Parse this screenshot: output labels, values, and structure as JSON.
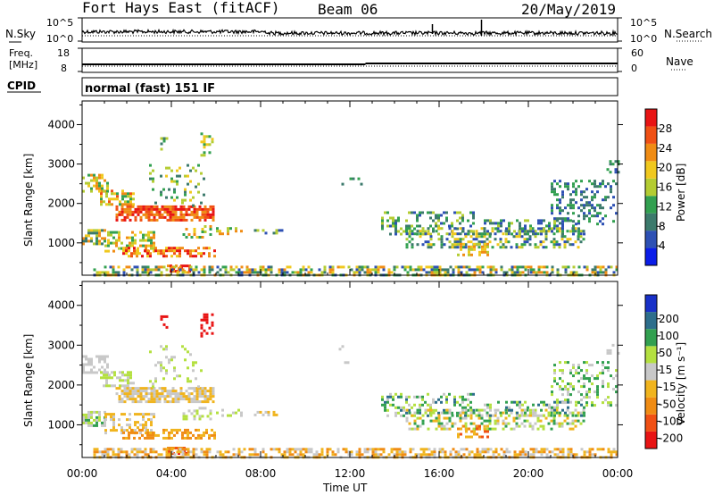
{
  "header": {
    "station": "Fort Hays East (fitACF)",
    "beam": "Beam 06",
    "date": "20/May/2019"
  },
  "top_panels": {
    "nsky_label": "N.Sky",
    "nsearch_label": "N.Search",
    "count_ticks": [
      "10^5",
      "10^0"
    ],
    "freq_label_line1": "Freq.",
    "freq_label_line2": "[MHz]",
    "freq_ticks": [
      "18",
      "8"
    ],
    "nave_label": "Nave",
    "nave_ticks": [
      "60",
      "0"
    ],
    "cpid_label": "CPID",
    "cpid_text": "normal (fast) 151 IF"
  },
  "colors": {
    "power": [
      "#0b1de8",
      "#2d50b4",
      "#3c7a6c",
      "#32a050",
      "#b4cc32",
      "#f0c81e",
      "#f08c14",
      "#f05014",
      "#e81414"
    ],
    "velocity": [
      "#e81414",
      "#f05014",
      "#f08c14",
      "#f0b41e",
      "#c8c8c8",
      "#b4e040",
      "#32a050",
      "#2d6e8c",
      "#1830c8"
    ]
  },
  "chart_data": [
    {
      "type": "heatmap",
      "parameter": "power",
      "title": "",
      "xlabel": "Time UT",
      "ylabel": "Slant Range [km]",
      "x_ticks": [
        "00:00",
        "04:00",
        "08:00",
        "12:00",
        "16:00",
        "20:00",
        "00:00"
      ],
      "xlim_hours": [
        0,
        24
      ],
      "y_ticks": [
        1000,
        2000,
        3000,
        4000
      ],
      "ylim_km": [
        180,
        4600
      ],
      "colorbar": {
        "label": "Power [dB]",
        "ticks": [
          "4",
          "8",
          "12",
          "16",
          "20",
          "24",
          "28"
        ],
        "range": [
          0,
          32
        ]
      }
    },
    {
      "type": "heatmap",
      "parameter": "velocity",
      "title": "",
      "xlabel": "Time UT",
      "ylabel": "Slant Range [km]",
      "x_ticks": [
        "00:00",
        "04:00",
        "08:00",
        "12:00",
        "16:00",
        "20:00",
        "00:00"
      ],
      "xlim_hours": [
        0,
        24
      ],
      "y_ticks": [
        1000,
        2000,
        3000,
        4000
      ],
      "ylim_km": [
        180,
        4600
      ],
      "colorbar": {
        "label": "Velocity [m s⁻¹]",
        "ticks": [
          "-200",
          "-100",
          "-50",
          "-15",
          "15",
          "50",
          "100",
          "200"
        ]
      }
    }
  ]
}
